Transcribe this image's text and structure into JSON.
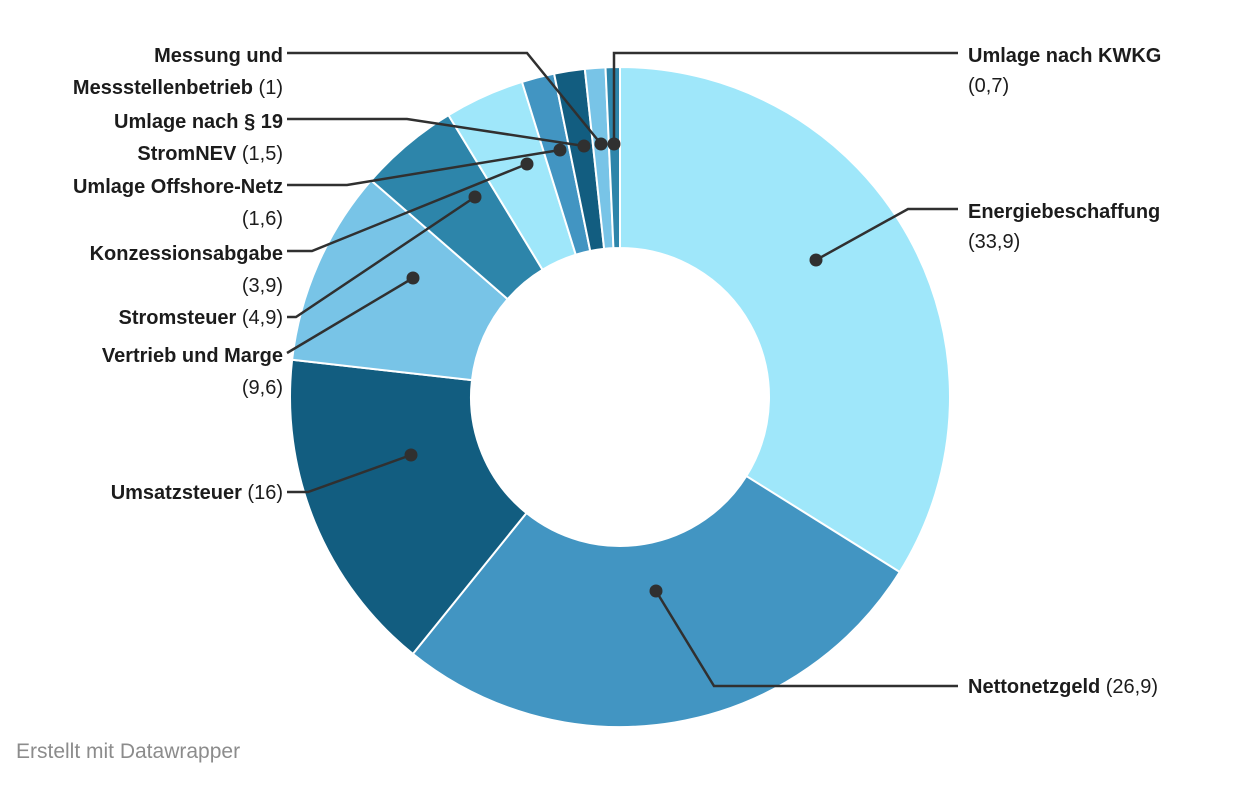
{
  "chart_data": {
    "type": "pie",
    "subtype": "donut",
    "title": "",
    "start_angle_deg": 0,
    "direction": "clockwise",
    "legend": "none (direct leader-line labels)",
    "slices": [
      {
        "label": "Energiebeschaffung",
        "value": 33.9,
        "display_value": "33,9",
        "color": "#9fe7fa"
      },
      {
        "label": "Nettonetzgeld",
        "value": 26.9,
        "display_value": "26,9",
        "color": "#4295c2"
      },
      {
        "label": "Umsatzsteuer",
        "value": 16,
        "display_value": "16",
        "color": "#125d80"
      },
      {
        "label": "Vertrieb und Marge",
        "value": 9.6,
        "display_value": "9,6",
        "color": "#78c4e7"
      },
      {
        "label": "Stromsteuer",
        "value": 4.9,
        "display_value": "4,9",
        "color": "#2d85aa"
      },
      {
        "label": "Konzessionsabgabe",
        "value": 3.9,
        "display_value": "3,9",
        "color": "#9fe7fa"
      },
      {
        "label": "Umlage Offshore-Netz",
        "value": 1.6,
        "display_value": "1,6",
        "color": "#4295c2"
      },
      {
        "label": "Umlage nach § 19 StromNEV",
        "value": 1.5,
        "display_value": "1,5",
        "color": "#125d80"
      },
      {
        "label": "Messung und Messstellenbetrieb",
        "value": 1,
        "display_value": "1",
        "color": "#78c4e7"
      },
      {
        "label": "Umlage nach KWKG",
        "value": 0.7,
        "display_value": "0,7",
        "color": "#2d85aa"
      }
    ]
  },
  "labels": {
    "messung": {
      "line1": "Messung und",
      "line2_name": "Messstellenbetrieb",
      "line2_value": " (1)"
    },
    "stromnev": {
      "line1": "Umlage nach § 19",
      "line2_name": "StromNEV",
      "line2_value": " (1,5)"
    },
    "offshore": {
      "line1": "Umlage Offshore-Netz",
      "line2_value": "(1,6)"
    },
    "konzessionsabgabe": {
      "line1": "Konzessionsabgabe",
      "line2_value": "(3,9)"
    },
    "stromsteuer": {
      "name": "Stromsteuer",
      "value": " (4,9)"
    },
    "vertrieb": {
      "line1": "Vertrieb und Marge",
      "line2_value": "(9,6)"
    },
    "umsatzsteuer": {
      "name": "Umsatzsteuer",
      "value": " (16)"
    },
    "kwkg": {
      "line1": "Umlage nach KWKG",
      "line2_value": "(0,7)"
    },
    "energiebeschaffung": {
      "line1": "Energiebeschaffung",
      "line2_value": "(33,9)"
    },
    "nettonetzgeld": {
      "name": "Nettonetzgeld",
      "value": " (26,9)"
    }
  },
  "colors": {
    "leader_line": "#303030",
    "label_text": "#1c1c1c",
    "footer_text": "#8c8c8c",
    "slice_border": "#ffffff"
  },
  "footer": {
    "attribution": "Erstellt mit Datawrapper"
  }
}
